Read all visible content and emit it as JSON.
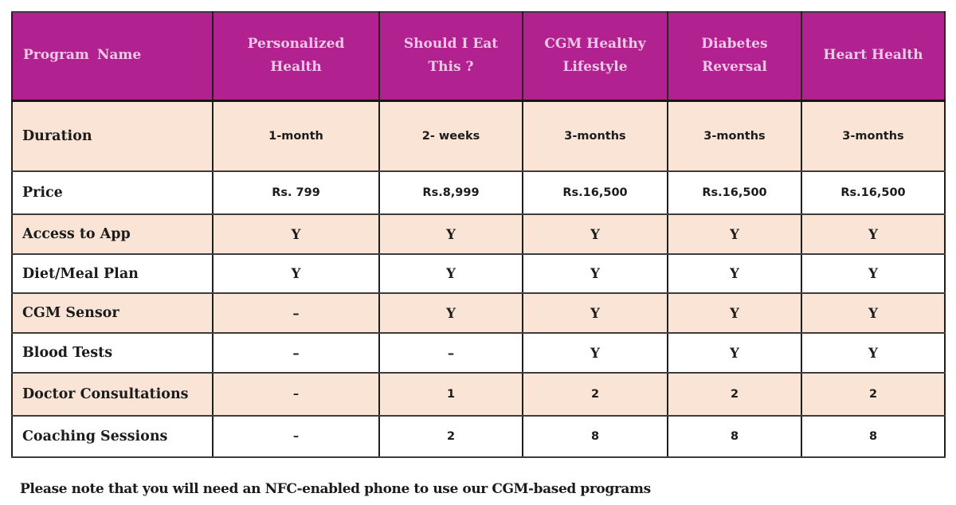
{
  "table": {
    "columns": [
      "Program Name",
      "Personalized Health",
      "Should I Eat This ?",
      "CGM Healthy Lifestyle",
      "Diabetes Reversal",
      "Heart Health"
    ],
    "rows": [
      {
        "label": "Duration",
        "values": [
          "1-month",
          "2- weeks",
          "3-months",
          "3-months",
          "3-months"
        ]
      },
      {
        "label": "Price",
        "values": [
          "Rs. 799",
          "Rs.8,999",
          "Rs.16,500",
          "Rs.16,500",
          "Rs.16,500"
        ]
      },
      {
        "label": "Access to App",
        "values": [
          "Y",
          "Y",
          "Y",
          "Y",
          "Y"
        ]
      },
      {
        "label": "Diet/Meal Plan",
        "values": [
          "Y",
          "Y",
          "Y",
          "Y",
          "Y"
        ]
      },
      {
        "label": "CGM Sensor",
        "values": [
          "–",
          "Y",
          "Y",
          "Y",
          "Y"
        ]
      },
      {
        "label": "Blood Tests",
        "values": [
          "–",
          "–",
          "Y",
          "Y",
          "Y"
        ]
      },
      {
        "label": "Doctor Consultations",
        "values": [
          "–",
          "1",
          "2",
          "2",
          "2"
        ]
      },
      {
        "label": "Coaching Sessions",
        "values": [
          "–",
          "2",
          "8",
          "8",
          "8"
        ]
      }
    ]
  },
  "footer_note": "Please note that you will need an NFC-enabled phone to use our CGM-based programs",
  "colors": {
    "header_bg": "#B12290",
    "header_text": "#F1C7E8",
    "shaded_row_bg": "#FAE4D5",
    "body_text": "#1C1C1C"
  }
}
